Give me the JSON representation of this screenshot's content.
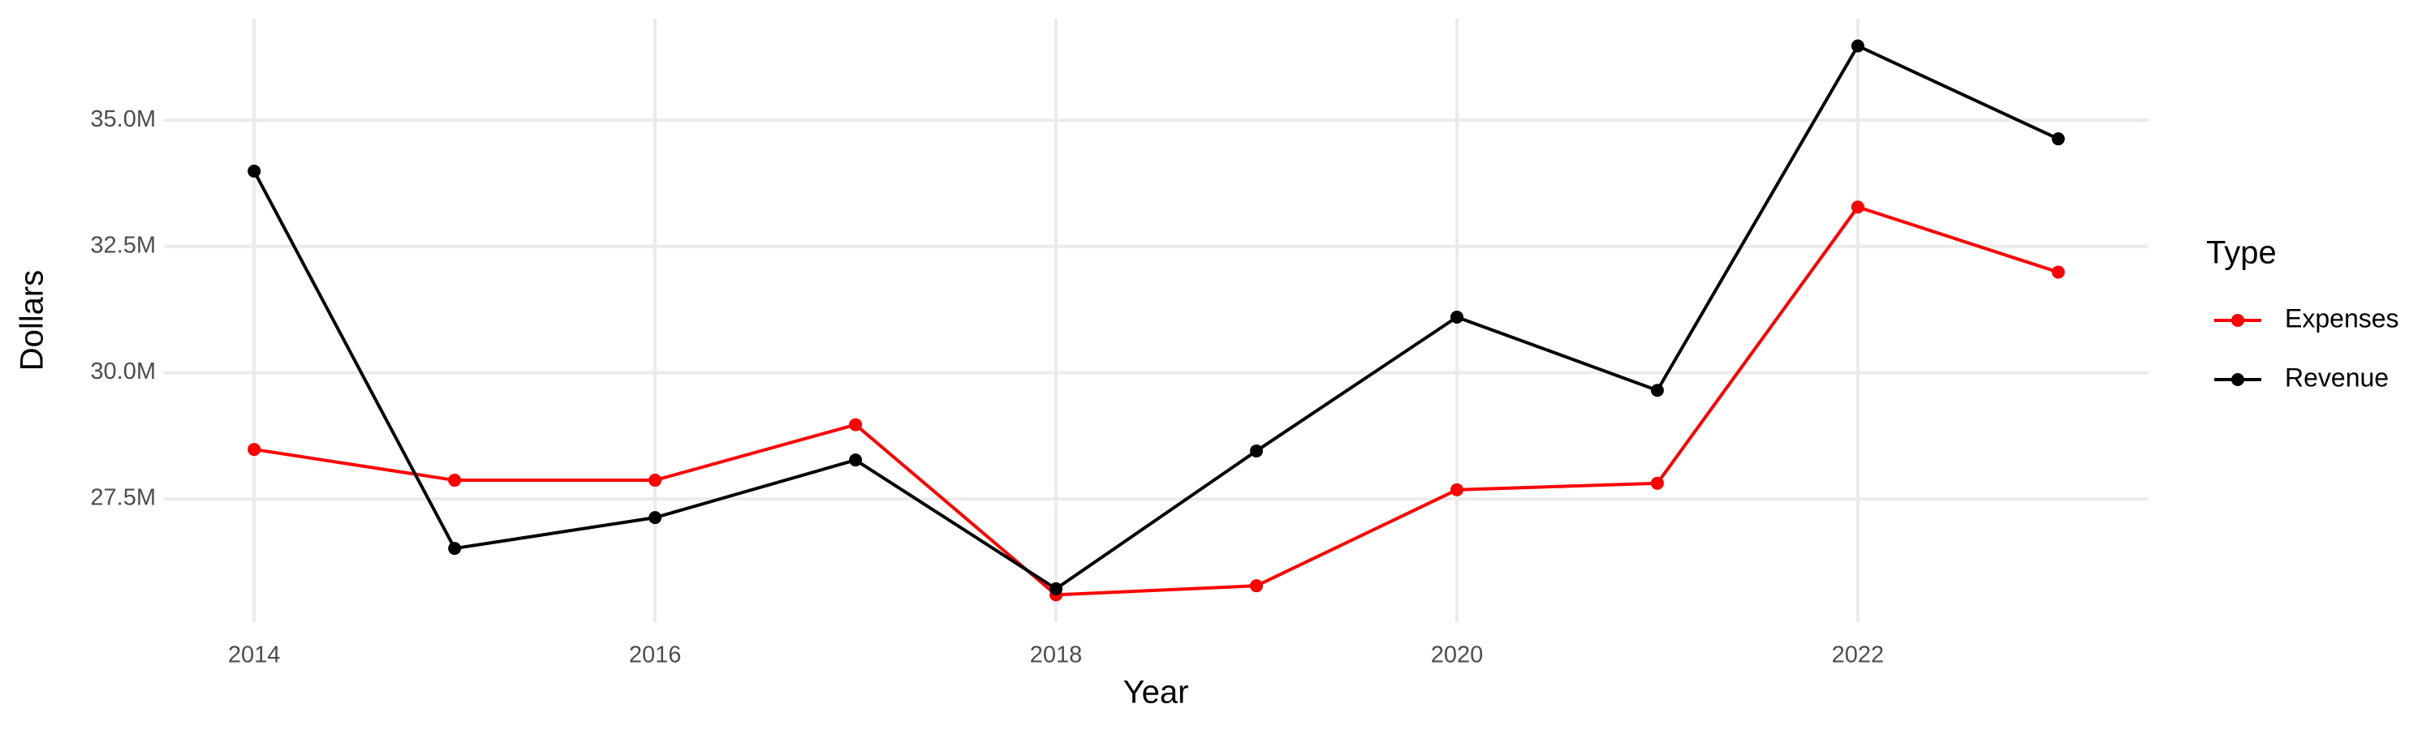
{
  "chart_data": {
    "type": "line",
    "x_label": "Year",
    "y_label": "Dollars",
    "legend_title": "Type",
    "x": [
      2014,
      2015,
      2016,
      2017,
      2018,
      2019,
      2020,
      2021,
      2022,
      2023
    ],
    "series": [
      {
        "name": "Expenses",
        "color": "#ff0000",
        "values": [
          28480000,
          27870000,
          27870000,
          28970000,
          25600000,
          25780000,
          27680000,
          27810000,
          33280000,
          31990000
        ]
      },
      {
        "name": "Revenue",
        "color": "#000000",
        "values": [
          33990000,
          26520000,
          27130000,
          28270000,
          25720000,
          28450000,
          31100000,
          29650000,
          36470000,
          34630000
        ]
      }
    ],
    "xlim": [
      2013.55,
      2023.45
    ],
    "xticks": [
      2014,
      2016,
      2018,
      2020,
      2022
    ],
    "ylim": [
      25060000,
      37010000
    ],
    "yticks": [
      {
        "value": 27500000,
        "label": "27.5M"
      },
      {
        "value": 30000000,
        "label": "30.0M"
      },
      {
        "value": 32500000,
        "label": "32.5M"
      },
      {
        "value": 35000000,
        "label": "35.0M"
      }
    ],
    "grid": true,
    "legend_position": "right"
  }
}
